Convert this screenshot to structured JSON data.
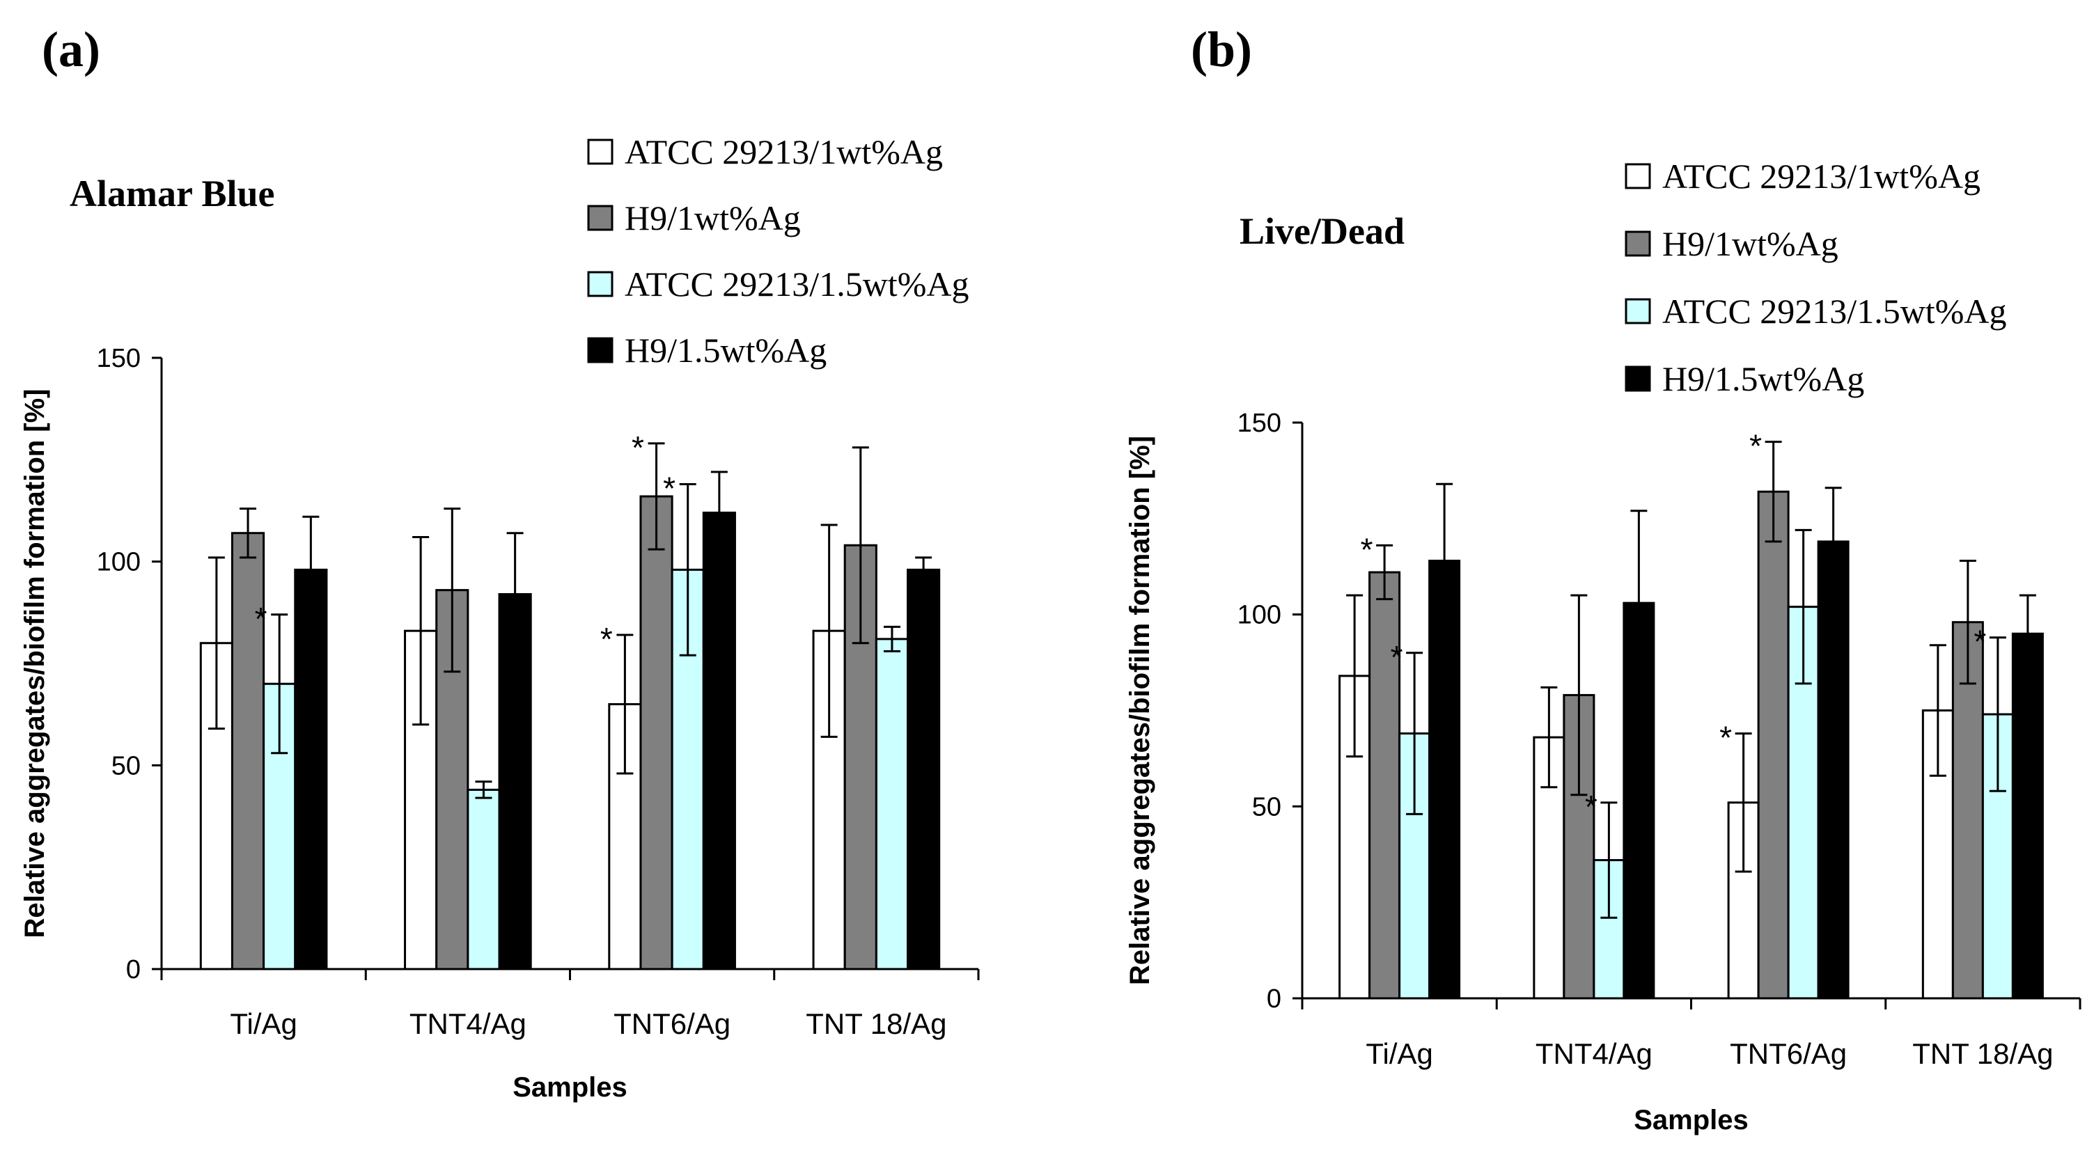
{
  "colors": {
    "ATCC 29213/1wt%Ag": "#ffffff",
    "H9/1wt%Ag": "#808080",
    "ATCC 29213/1.5wt%Ag": "#ccffff",
    "H9/1.5wt%Ag": "#000000"
  },
  "chart_data": [
    {
      "type": "bar",
      "panel": "(a)",
      "title": "Alamar Blue",
      "xlabel": "Samples",
      "ylabel": "Relative aggregates/biofilm formation [%]",
      "ylim": [
        0,
        150
      ],
      "yticks": [
        "0",
        "50",
        "100",
        "150"
      ],
      "categories": [
        "Ti/Ag",
        "TNT4/Ag",
        "TNT6/Ag",
        "TNT 18/Ag"
      ],
      "legend_position": "top-right",
      "series": [
        {
          "name": "ATCC 29213/1wt%Ag",
          "values": [
            80,
            83,
            65,
            83
          ],
          "errors": [
            21,
            23,
            17,
            26
          ],
          "stars": [
            false,
            false,
            true,
            false
          ]
        },
        {
          "name": "H9/1wt%Ag",
          "values": [
            107,
            93,
            116,
            104
          ],
          "errors": [
            6,
            20,
            13,
            24
          ],
          "stars": [
            false,
            false,
            true,
            false
          ]
        },
        {
          "name": "ATCC 29213/1.5wt%Ag",
          "values": [
            70,
            44,
            98,
            81
          ],
          "errors": [
            17,
            2,
            21,
            3
          ],
          "stars": [
            true,
            false,
            true,
            false
          ]
        },
        {
          "name": "H9/1.5wt%Ag",
          "values": [
            98,
            92,
            112,
            98
          ],
          "errors": [
            13,
            15,
            10,
            3
          ],
          "stars": [
            false,
            false,
            false,
            false
          ]
        }
      ]
    },
    {
      "type": "bar",
      "panel": "(b)",
      "title": "Live/Dead",
      "xlabel": "Samples",
      "ylabel": "Relative aggregates/biofilm formation [%]",
      "ylim": [
        0,
        150
      ],
      "yticks": [
        "0",
        "50",
        "100",
        "150"
      ],
      "categories": [
        "Ti/Ag",
        "TNT4/Ag",
        "TNT6/Ag",
        "TNT 18/Ag"
      ],
      "legend_position": "top-right",
      "series": [
        {
          "name": "ATCC 29213/1wt%Ag",
          "values": [
            84,
            68,
            51,
            75
          ],
          "errors": [
            21,
            13,
            18,
            17
          ],
          "stars": [
            false,
            false,
            true,
            false
          ]
        },
        {
          "name": "H9/1wt%Ag",
          "values": [
            111,
            79,
            132,
            98
          ],
          "errors": [
            7,
            26,
            13,
            16
          ],
          "stars": [
            true,
            false,
            true,
            false
          ]
        },
        {
          "name": "ATCC 29213/1.5wt%Ag",
          "values": [
            69,
            36,
            102,
            74
          ],
          "errors": [
            21,
            15,
            20,
            20
          ],
          "stars": [
            true,
            true,
            false,
            true
          ]
        },
        {
          "name": "H9/1.5wt%Ag",
          "values": [
            114,
            103,
            119,
            95
          ],
          "errors": [
            20,
            24,
            14,
            10
          ],
          "stars": [
            false,
            false,
            false,
            false
          ]
        }
      ]
    }
  ]
}
